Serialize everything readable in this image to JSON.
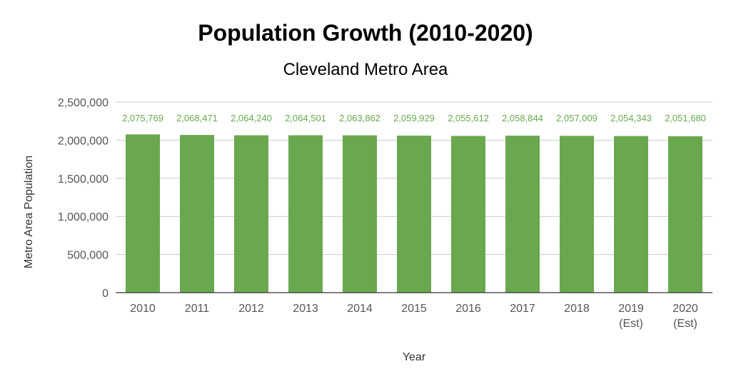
{
  "chart_data": {
    "type": "bar",
    "title": "Population Growth (2010-2020)",
    "subtitle": "Cleveland Metro Area",
    "xlabel": "Year",
    "ylabel": "Metro Area Population",
    "ylim": [
      0,
      2500000
    ],
    "yticks": [
      0,
      500000,
      1000000,
      1500000,
      2000000,
      2500000
    ],
    "ytick_labels": [
      "0",
      "500,000",
      "1,000,000",
      "1,500,000",
      "2,000,000",
      "2,500,000"
    ],
    "grid": true,
    "bar_color": "#6aa84f",
    "label_color": "#6aa84f",
    "categories": [
      [
        "2010"
      ],
      [
        "2011"
      ],
      [
        "2012"
      ],
      [
        "2013"
      ],
      [
        "2014"
      ],
      [
        "2015"
      ],
      [
        "2016"
      ],
      [
        "2017"
      ],
      [
        "2018"
      ],
      [
        "2019",
        "(Est)"
      ],
      [
        "2020",
        "(Est)"
      ]
    ],
    "values": [
      2075769,
      2068471,
      2064240,
      2064501,
      2063862,
      2059929,
      2055612,
      2058844,
      2057009,
      2054343,
      2051680
    ],
    "value_labels": [
      "2,075,769",
      "2,068,471",
      "2,064,240",
      "2,064,501",
      "2,063,862",
      "2,059,929",
      "2,055,612",
      "2,058,844",
      "2,057,009",
      "2,054,343",
      "2,051,680"
    ]
  }
}
